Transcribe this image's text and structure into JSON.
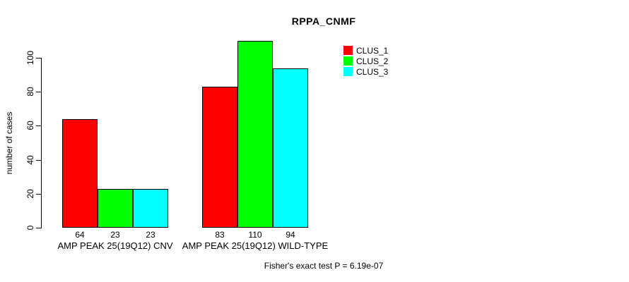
{
  "chart_data": {
    "type": "bar",
    "title": "RPPA_CNMF",
    "xlabel": "",
    "ylabel": "number of cases",
    "categories": [
      "AMP PEAK 25(19Q12) CNV",
      "AMP PEAK 25(19Q12) WILD-TYPE"
    ],
    "series": [
      {
        "name": "CLUS_1",
        "color": "#ff0000",
        "values": [
          64,
          83
        ]
      },
      {
        "name": "CLUS_2",
        "color": "#00ff00",
        "values": [
          23,
          110
        ]
      },
      {
        "name": "CLUS_3",
        "color": "#00ffff",
        "values": [
          23,
          94
        ]
      }
    ],
    "yticks": [
      0,
      20,
      40,
      60,
      80,
      100
    ],
    "ylim": [
      0,
      110
    ],
    "grid": false,
    "legend_position": "top-right",
    "bar_value_labels_shown": true,
    "annotation": "Fisher's exact test P = 6.19e-07"
  }
}
